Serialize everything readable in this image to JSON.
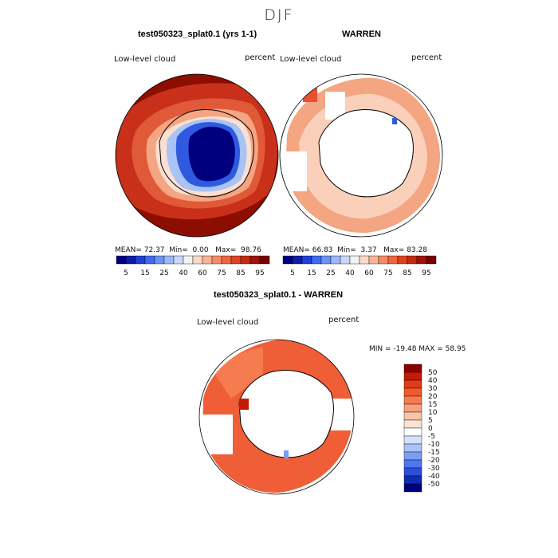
{
  "season": "DJF",
  "panel_a": {
    "title": "test050323_splat0.1 (yrs 1-1)",
    "field_label": "Low-level cloud",
    "units": "percent",
    "mean_label": "MEAN=",
    "mean": "72.37",
    "min_label": "Min=",
    "min": "0.00",
    "max_label": "Max=",
    "max": "98.76"
  },
  "panel_b": {
    "title": "WARREN",
    "field_label": "Low-level cloud",
    "units": "percent",
    "mean_label": "MEAN=",
    "mean": "66.83",
    "min_label": "Min=",
    "min": "3.37",
    "max_label": "Max=",
    "max": "83.28"
  },
  "panel_diff": {
    "title": "test050323_splat0.1 - WARREN",
    "field_label": "Low-level cloud",
    "units": "percent",
    "minmax_text": "MIN = -19.48 MAX =  58.95"
  },
  "colorbar_main": {
    "tick_labels": [
      "5",
      "15",
      "25",
      "40",
      "60",
      "75",
      "85",
      "95"
    ],
    "colors": [
      "#00007f",
      "#0b1ea8",
      "#1f3fd6",
      "#3f6af0",
      "#6b93f5",
      "#9db8f8",
      "#c8d8fb",
      "#f2f2f2",
      "#fbd9c6",
      "#f9b496",
      "#f58c68",
      "#ef6640",
      "#e0421f",
      "#c42a10",
      "#9e1305",
      "#7a0000"
    ]
  },
  "colorbar_diff": {
    "levels": [
      "50",
      "40",
      "30",
      "20",
      "15",
      "10",
      "5",
      "0",
      "-5",
      "-10",
      "-15",
      "-20",
      "-30",
      "-40",
      "-50"
    ],
    "colors": [
      "#8c0000",
      "#c41a05",
      "#e03c18",
      "#f25a2c",
      "#f67c50",
      "#f9a07a",
      "#fbc4a6",
      "#fbe3d4",
      "#ffffff",
      "#d6e2fb",
      "#a9c2f7",
      "#7c9ef2",
      "#4f76ec",
      "#2a4fd8",
      "#0f2cb0",
      "#00007a"
    ]
  },
  "palette": {
    "dark_red": "#8b0e00",
    "red": "#c8301a",
    "orange_red": "#e85030",
    "salmon": "#f4a582",
    "light_salmon": "#fbd0bb",
    "white": "#ffffff",
    "light_blue": "#a8c4f5",
    "blue": "#2f5ae0",
    "navy": "#00007f"
  }
}
